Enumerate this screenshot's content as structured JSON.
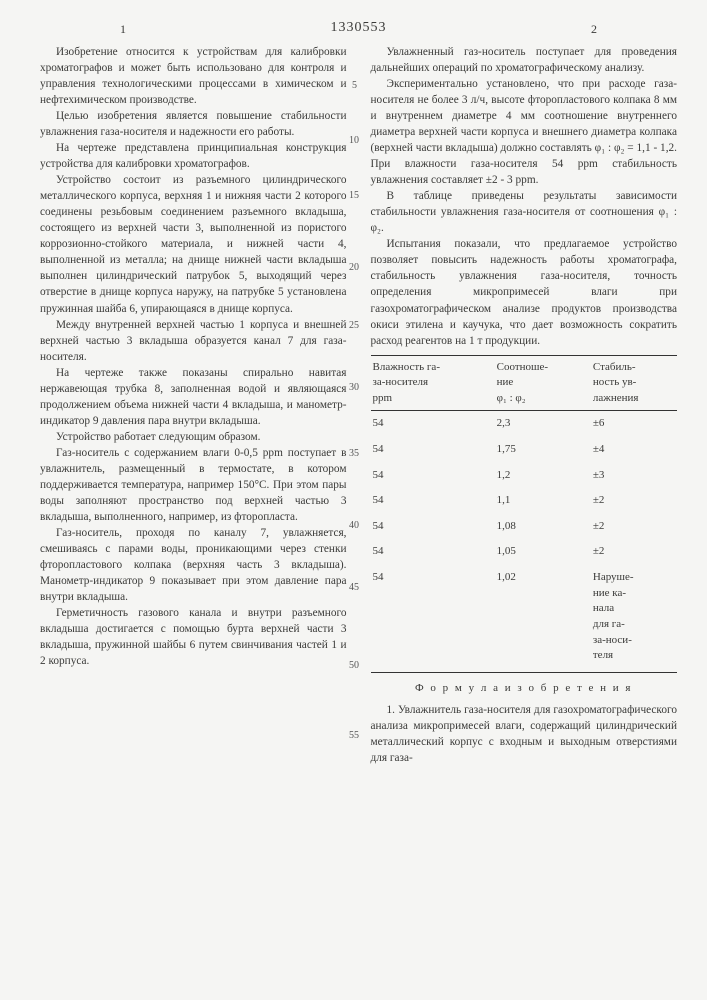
{
  "doc_number": "1330553",
  "page_left": "1",
  "page_right": "2",
  "line_numbers": [
    "5",
    "10",
    "15",
    "20",
    "25",
    "30",
    "35",
    "40",
    "45",
    "50",
    "55"
  ],
  "left_paragraphs": [
    "Изобретение относится к устройствам для калибровки хроматографов и может быть использовано для контроля и управления технологическими процессами в химическом и нефтехимическом производстве.",
    "Целью изобретения является повышение стабильности увлажнения газа-носителя и надежности его работы.",
    "На чертеже представлена принципиальная конструкция устройства для калибровки хроматографов.",
    "Устройство состоит из разъемного цилиндрического металлического корпуса, верхняя 1 и нижняя части 2 которого соединены резьбовым соединением разъемного вкладыша, состоящего из верхней части 3, выполненной из пористого коррозионно-стойкого материала, и нижней части 4, выполненной из металла; на днище нижней части вкладыша выполнен цилиндрический патрубок 5, выходящий через отверстие в днище корпуса наружу, на патрубке 5 установлена пружинная шайба 6, упирающаяся в днище корпуса.",
    "Между внутренней верхней частью 1 корпуса и внешней верхней частью 3 вкладыша образуется канал 7 для газа-носителя.",
    "На чертеже также показаны спирально навитая нержавеющая трубка 8, заполненная водой и являющаяся продолжением объема нижней части 4 вкладыша, и манометр-индикатор 9 давления пара внутри вкладыша.",
    "Устройство работает следующим образом.",
    "Газ-носитель с содержанием влаги 0-0,5 ppm поступает в увлажнитель, размещенный в термостате, в котором поддерживается температура, например 150°С. При этом пары воды заполняют пространство под верхней частью 3 вкладыша, выполненного, например, из фторопласта.",
    "Газ-носитель, проходя по каналу 7, увлажняется, смешиваясь с парами воды, проникающими через стенки фторопластового колпака (верхняя часть 3 вкладыша). Манометр-индикатор 9 показывает при этом давление пара внутри вкладыша.",
    "Герметичность газового канала и внутри разъемного вкладыша достигается с помощью бурта верхней части 3 вкладыша, пружинной шайбы 6 путем свинчивания частей 1 и 2 корпуса."
  ],
  "right_paragraphs_top": [
    "Увлажненный газ-носитель поступает для проведения дальнейших операций по хроматографическому анализу.",
    "Экспериментально установлено, что при расходе газа-носителя не более 3 л/ч, высоте фторопластового колпака 8 мм и внутреннем диаметре 4 мм соотношение внутреннего диаметра верхней части корпуса и внешнего диаметра колпака (верхней части вкладыша) должно составлять φ₁ : φ₂ = 1,1 - 1,2. При влажности газа-носителя 54 ppm стабильность увлажнения составляет ±2 - 3 ppm.",
    "В таблице приведены результаты зависимости стабильности увлажнения газа-носителя от соотношения φ₁ : φ₂.",
    "Испытания показали, что предлагаемое устройство позволяет повысить надежность работы хроматографа, стабильность увлажнения газа-носителя, точность определения микропримесей влаги при газохроматографическом анализе продуктов производства окиси этилена и каучука, что дает возможность сократить расход реагентов на 1 т продукции."
  ],
  "table": {
    "headers": [
      "Влажность га-\nза-носителя\nppm",
      "Соотноше-\nние\nφ₁ : φ₂",
      "Стабиль-\nность ув-\nлажнения"
    ],
    "rows": [
      [
        "54",
        "2,3",
        "±6"
      ],
      [
        "54",
        "1,75",
        "±4"
      ],
      [
        "54",
        "1,2",
        "±3"
      ],
      [
        "54",
        "1,1",
        "±2"
      ],
      [
        "54",
        "1,08",
        "±2"
      ],
      [
        "54",
        "1,05",
        "±2"
      ],
      [
        "54",
        "1,02",
        "Наруше-\nние ка-\nнала\nдля га-\nза-носи-\nтеля"
      ]
    ]
  },
  "formula_heading": "Ф о р м у л а  и з о б р е т е н и я",
  "claim1": "1. Увлажнитель газа-носителя для газохроматографического анализа микропримесей влаги, содержащий цилиндрический металлический корпус с входным и выходным отверстиями для газа-"
}
